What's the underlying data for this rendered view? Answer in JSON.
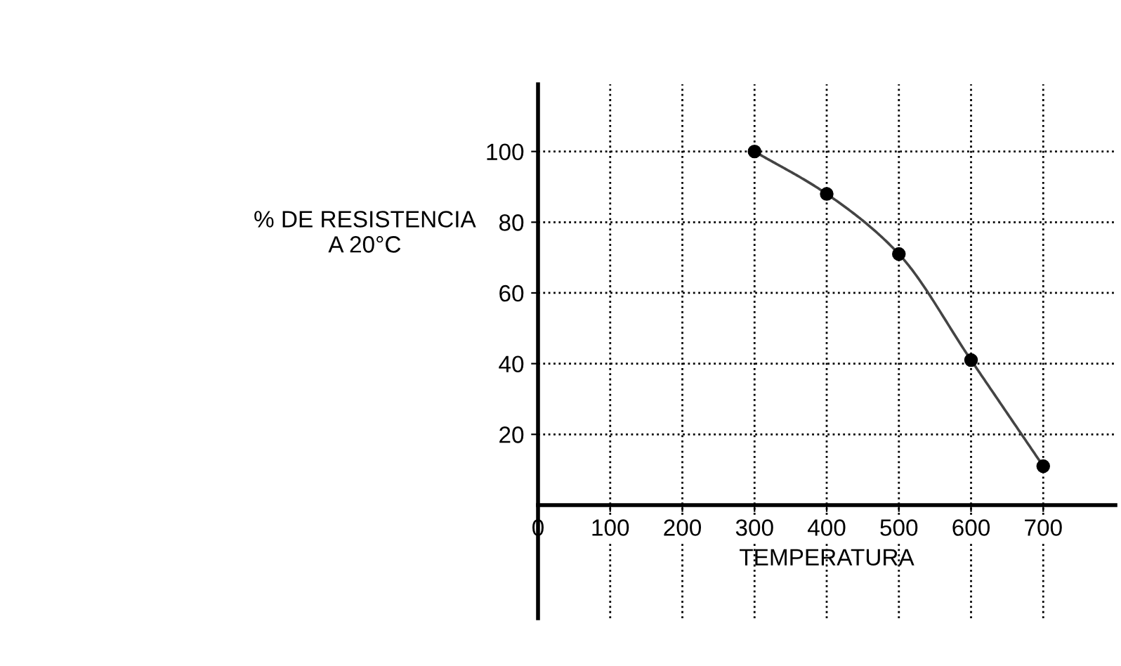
{
  "chart_data": {
    "type": "line",
    "xlabel": "TEMPERATURA",
    "ylabel": "% DE RESISTENCIA\nA 20°C",
    "x": [
      300,
      400,
      500,
      600,
      700
    ],
    "series": [
      {
        "color": "#000000",
        "values": [
          100,
          88,
          71,
          41,
          11
        ]
      }
    ],
    "xlim": [
      0,
      800
    ],
    "ylim": [
      -32,
      119
    ],
    "xticks": [
      0,
      100,
      200,
      300,
      400,
      500,
      600,
      700
    ],
    "yticks": [
      20,
      40,
      60,
      80,
      100
    ],
    "grid": true,
    "marker": "circle",
    "line_style": "solid"
  }
}
